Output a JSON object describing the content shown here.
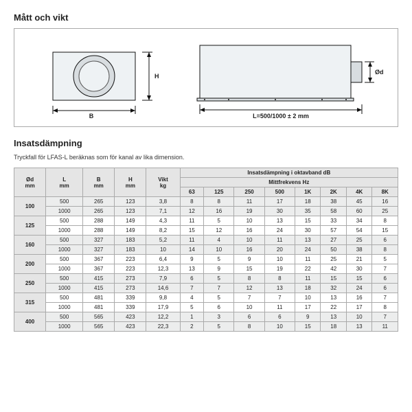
{
  "title_dims": "Mått och vikt",
  "title_damp": "Insatsdämpning",
  "subtitle": "Tryckfall för LFAS-L beräknas som för kanal av lika dimension.",
  "diagram": {
    "H": "H",
    "B": "B",
    "Od": "Ød",
    "L": "L=500/1000 ± 2 mm"
  },
  "table": {
    "hdr_band": "Insatsdämpning i oktavband dB",
    "hdr_freq": "Mittfrekvens Hz",
    "cols": [
      "Ød\nmm",
      "L\nmm",
      "B\nmm",
      "H\nmm",
      "Vikt\nkg",
      "63",
      "125",
      "250",
      "500",
      "1K",
      "2K",
      "4K",
      "8K"
    ],
    "groups": [
      {
        "od": "100",
        "rows": [
          [
            "500",
            "265",
            "123",
            "3,8",
            "8",
            "8",
            "11",
            "17",
            "18",
            "38",
            "45",
            "16"
          ],
          [
            "1000",
            "265",
            "123",
            "7,1",
            "12",
            "16",
            "19",
            "30",
            "35",
            "58",
            "60",
            "25"
          ]
        ]
      },
      {
        "od": "125",
        "rows": [
          [
            "500",
            "288",
            "149",
            "4,3",
            "11",
            "5",
            "10",
            "13",
            "15",
            "33",
            "34",
            "8"
          ],
          [
            "1000",
            "288",
            "149",
            "8,2",
            "15",
            "12",
            "16",
            "24",
            "30",
            "57",
            "54",
            "15"
          ]
        ]
      },
      {
        "od": "160",
        "rows": [
          [
            "500",
            "327",
            "183",
            "5,2",
            "11",
            "4",
            "10",
            "11",
            "13",
            "27",
            "25",
            "6"
          ],
          [
            "1000",
            "327",
            "183",
            "10",
            "14",
            "10",
            "16",
            "20",
            "24",
            "50",
            "38",
            "8"
          ]
        ]
      },
      {
        "od": "200",
        "rows": [
          [
            "500",
            "367",
            "223",
            "6,4",
            "9",
            "5",
            "9",
            "10",
            "11",
            "25",
            "21",
            "5"
          ],
          [
            "1000",
            "367",
            "223",
            "12,3",
            "13",
            "9",
            "15",
            "19",
            "22",
            "42",
            "30",
            "7"
          ]
        ]
      },
      {
        "od": "250",
        "rows": [
          [
            "500",
            "415",
            "273",
            "7,9",
            "6",
            "5",
            "8",
            "8",
            "11",
            "15",
            "15",
            "6"
          ],
          [
            "1000",
            "415",
            "273",
            "14,6",
            "7",
            "7",
            "12",
            "13",
            "18",
            "32",
            "24",
            "6"
          ]
        ]
      },
      {
        "od": "315",
        "rows": [
          [
            "500",
            "481",
            "339",
            "9,8",
            "4",
            "5",
            "7",
            "7",
            "10",
            "13",
            "16",
            "7"
          ],
          [
            "1000",
            "481",
            "339",
            "17,9",
            "5",
            "6",
            "10",
            "11",
            "17",
            "22",
            "17",
            "8"
          ]
        ]
      },
      {
        "od": "400",
        "rows": [
          [
            "500",
            "565",
            "423",
            "12,2",
            "1",
            "3",
            "6",
            "6",
            "9",
            "13",
            "10",
            "7"
          ],
          [
            "1000",
            "565",
            "423",
            "22,3",
            "2",
            "5",
            "8",
            "10",
            "15",
            "18",
            "13",
            "11"
          ]
        ]
      }
    ]
  }
}
